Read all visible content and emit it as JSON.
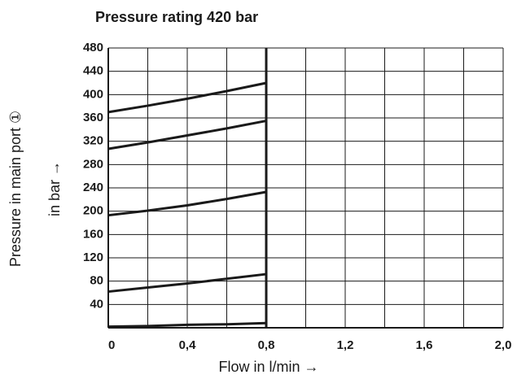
{
  "chart_data": {
    "type": "line",
    "title": "Pressure rating 420 bar",
    "ylabel": [
      "Pressure in main port ①",
      "in bar →"
    ],
    "xlabel": "Flow in l/min →",
    "x": [
      0,
      0.2,
      0.4,
      0.6,
      0.8
    ],
    "series": [
      {
        "color": "#1a1a1a",
        "values": [
          370,
          381,
          393,
          406,
          420
        ]
      },
      {
        "color": "#1a1a1a",
        "values": [
          307,
          318,
          330,
          342,
          355
        ]
      },
      {
        "color": "#1a1a1a",
        "values": [
          193,
          201,
          210,
          221,
          233
        ]
      },
      {
        "color": "#1a1a1a",
        "values": [
          62,
          69,
          76,
          84,
          92
        ]
      },
      {
        "color": "#1a1a1a",
        "values": [
          2,
          3,
          5,
          6,
          8
        ]
      }
    ],
    "xlim": [
      0,
      2.0
    ],
    "xticks": [
      0,
      {
        "value": 0.4,
        "label": "0,4"
      },
      {
        "value": 0.8,
        "label": "0,8"
      },
      {
        "value": 1.2,
        "label": "1,2"
      },
      {
        "value": 1.6,
        "label": "1,6"
      },
      {
        "value": 2.0,
        "label": "2,0"
      }
    ],
    "ylim": [
      0,
      480
    ],
    "yticks": [
      40,
      80,
      120,
      160,
      200,
      240,
      280,
      320,
      360,
      400,
      440,
      480
    ],
    "grid": true
  }
}
